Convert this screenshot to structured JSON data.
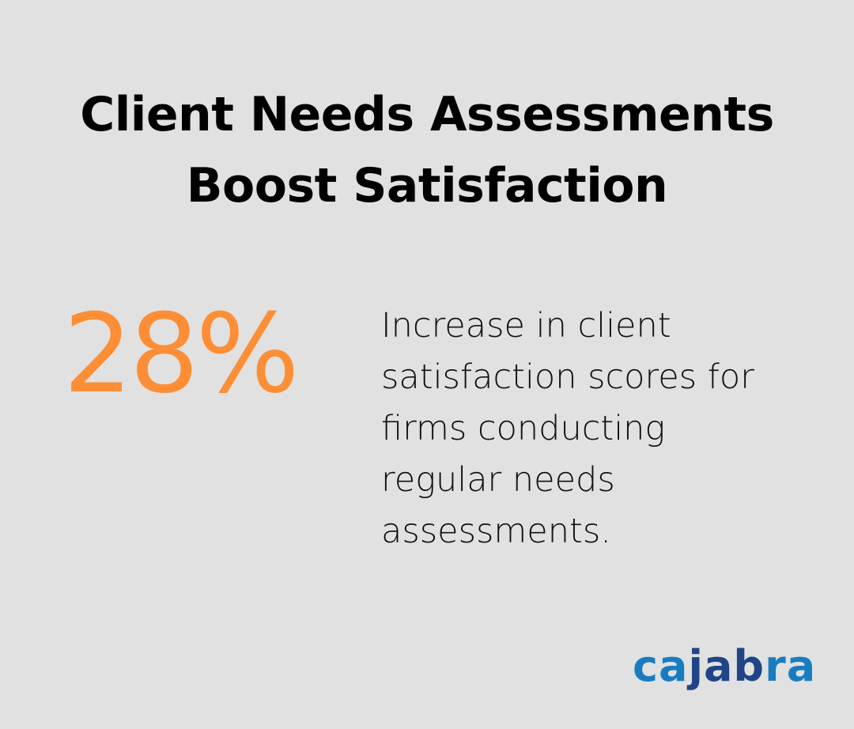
{
  "header": {
    "title_line1": "Client Needs Assessments",
    "title_line2": "Boost Satisfaction"
  },
  "stat": {
    "value": "28%",
    "color": "#fd8e35",
    "description": "Increase in client satisfaction scores for firms conducting regular needs assessments."
  },
  "logo": {
    "part1": "ca",
    "part2": "jab",
    "part3": "ra",
    "colors": {
      "light": "#1a7cc0",
      "dark": "#1f4487"
    }
  },
  "background": "#e0e1e0"
}
